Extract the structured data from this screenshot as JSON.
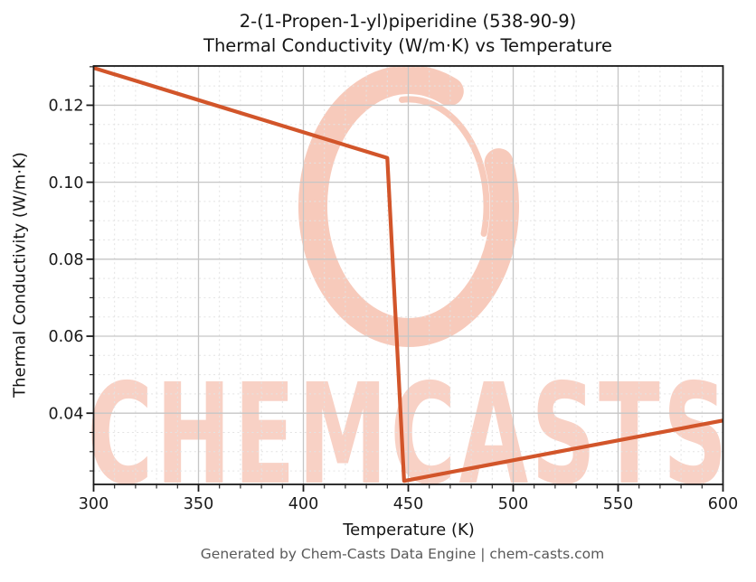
{
  "page": {
    "background": "#ffffff"
  },
  "header": {
    "title_line1": "2-(1-Propen-1-yl)piperidine (538-90-9)",
    "title_line2": "Thermal Conductivity (W/m·K) vs Temperature"
  },
  "axes": {
    "xlabel": "Temperature (K)",
    "ylabel": "Thermal Conductivity (W/m·K)"
  },
  "watermark": {
    "text": "CHEMCASTS",
    "logo": "chemcasts-swirl-logo",
    "color": "#f8d1c5",
    "logo_color": "#f7cabb"
  },
  "footer": {
    "text": "Generated by Chem-Casts Data Engine | chem-casts.com"
  },
  "chart_data": {
    "type": "line",
    "title": "2-(1-Propen-1-yl)piperidine (538-90-9) — Thermal Conductivity (W/m·K) vs Temperature",
    "xlabel": "Temperature (K)",
    "ylabel": "Thermal Conductivity (W/m·K)",
    "x": [
      300,
      440,
      448,
      600
    ],
    "y": [
      0.1297,
      0.1063,
      0.0224,
      0.0381
    ],
    "series_note": "liquid phase falls 0.130→0.106 from 300–440 K, sharp drop at ~441–448 K phase change, gas phase rises 0.022→0.038 from 448–600 K",
    "xlim": [
      300,
      600
    ],
    "ylim": [
      0.0215,
      0.1302
    ],
    "x_major_ticks": [
      300,
      350,
      400,
      450,
      500,
      550,
      600
    ],
    "y_major_ticks": [
      0.04,
      0.06,
      0.08,
      0.1,
      0.12
    ],
    "x_minor_step": 10,
    "y_minor_step": 0.005,
    "grid": true,
    "legend": false,
    "line_color": "#d2552a",
    "axis_color": "#1a1a1a",
    "grid_major_color": "#c6c6c6",
    "grid_minor_color": "#e3e3e3"
  }
}
